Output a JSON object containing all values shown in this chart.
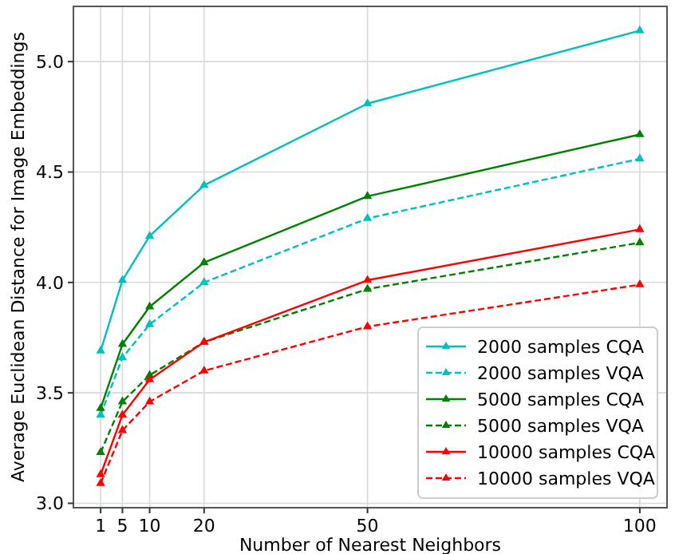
{
  "chart_data": {
    "type": "line",
    "xlabel": "Number of Nearest Neighbors",
    "ylabel": "Average Euclidean Distance for Image Embeddings",
    "x": [
      1,
      5,
      10,
      20,
      50,
      100
    ],
    "xlim": [
      -4,
      105
    ],
    "xticks": [
      1,
      5,
      10,
      20,
      50,
      100
    ],
    "ylim": [
      2.98,
      5.25
    ],
    "yticks": [
      {
        "value": 3.0,
        "label": "3.0"
      },
      {
        "value": 3.5,
        "label": "3.5"
      },
      {
        "value": 4.0,
        "label": "4.0"
      },
      {
        "value": 4.5,
        "label": "4.5"
      },
      {
        "value": 5.0,
        "label": "5.0"
      }
    ],
    "grid": true,
    "legend": "bottom right",
    "marker": "triangle",
    "series": [
      {
        "name": "2000 samples CQA",
        "color": "#00bfbf",
        "line_style": "solid",
        "values": [
          3.69,
          4.01,
          4.21,
          4.44,
          4.81,
          5.14
        ]
      },
      {
        "name": "2000 samples VQA",
        "color": "#00bfbf",
        "line_style": "dashed",
        "values": [
          3.4,
          3.66,
          3.81,
          4.0,
          4.29,
          4.56
        ]
      },
      {
        "name": "5000 samples CQA",
        "color": "#008000",
        "line_style": "solid",
        "values": [
          3.43,
          3.72,
          3.89,
          4.09,
          4.39,
          4.67
        ]
      },
      {
        "name": "5000 samples VQA",
        "color": "#008000",
        "line_style": "dashed",
        "values": [
          3.23,
          3.46,
          3.58,
          3.73,
          3.97,
          4.18
        ]
      },
      {
        "name": "10000 samples CQA",
        "color": "#ff0000",
        "line_style": "solid",
        "values": [
          3.13,
          3.4,
          3.56,
          3.73,
          4.01,
          4.24
        ]
      },
      {
        "name": "10000 samples VQA",
        "color": "#ff0000",
        "line_style": "dashed",
        "values": [
          3.09,
          3.33,
          3.46,
          3.6,
          3.8,
          3.99
        ]
      }
    ]
  }
}
